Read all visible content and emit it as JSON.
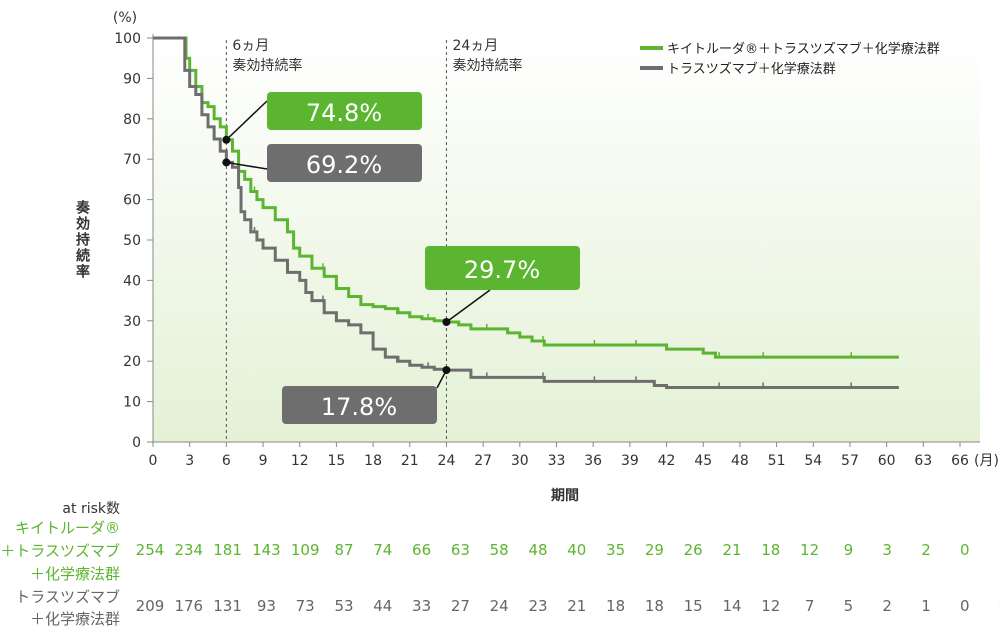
{
  "chart_data": {
    "type": "line",
    "subtype": "kaplan-meier",
    "ylabel": "奏効持続率",
    "yunit": "(%)",
    "xlabel": "期間",
    "xunit": "(月)",
    "xlim": [
      0,
      66
    ],
    "ylim": [
      0,
      100
    ],
    "xticks": [
      0,
      3,
      6,
      9,
      12,
      15,
      18,
      21,
      24,
      27,
      30,
      33,
      36,
      39,
      42,
      45,
      48,
      51,
      54,
      57,
      60,
      63,
      66
    ],
    "yticks": [
      0,
      10,
      20,
      30,
      40,
      50,
      60,
      70,
      80,
      90,
      100
    ],
    "colors": {
      "green": "#5cb531",
      "gray": "#6e6e6e"
    },
    "series": [
      {
        "name": "キイトルーダ®＋トラスツズマブ＋化学療法群",
        "color": "#5cb531",
        "points": [
          [
            0,
            100
          ],
          [
            2.5,
            100
          ],
          [
            2.7,
            95
          ],
          [
            3,
            92
          ],
          [
            3.5,
            88
          ],
          [
            4,
            84
          ],
          [
            4.5,
            83
          ],
          [
            5,
            80
          ],
          [
            5.5,
            78
          ],
          [
            6,
            74.8
          ],
          [
            6.5,
            72
          ],
          [
            7,
            67
          ],
          [
            7.5,
            65
          ],
          [
            8,
            62
          ],
          [
            8.5,
            60
          ],
          [
            9,
            58
          ],
          [
            10,
            55
          ],
          [
            11,
            52
          ],
          [
            11.5,
            48
          ],
          [
            12,
            46
          ],
          [
            13,
            43
          ],
          [
            14,
            41
          ],
          [
            15,
            38
          ],
          [
            16,
            36
          ],
          [
            17,
            34
          ],
          [
            18,
            33.5
          ],
          [
            19,
            33
          ],
          [
            20,
            32
          ],
          [
            21,
            31
          ],
          [
            22,
            30.5
          ],
          [
            23,
            30
          ],
          [
            24,
            29.7
          ],
          [
            25,
            29
          ],
          [
            26,
            28
          ],
          [
            28,
            28
          ],
          [
            29,
            27
          ],
          [
            30,
            26
          ],
          [
            31,
            25
          ],
          [
            32,
            24
          ],
          [
            41,
            24
          ],
          [
            42,
            23
          ],
          [
            45,
            22
          ],
          [
            46,
            21
          ],
          [
            61,
            21
          ]
        ]
      },
      {
        "name": "トラスツズマブ＋化学療法群",
        "color": "#6e6e6e",
        "points": [
          [
            0,
            100
          ],
          [
            2.5,
            100
          ],
          [
            2.6,
            92
          ],
          [
            3,
            88
          ],
          [
            3.5,
            86
          ],
          [
            4,
            81
          ],
          [
            4.5,
            78
          ],
          [
            5,
            75
          ],
          [
            5.5,
            72
          ],
          [
            6,
            69.2
          ],
          [
            6.5,
            68
          ],
          [
            7,
            63
          ],
          [
            7.2,
            57
          ],
          [
            7.5,
            55
          ],
          [
            8,
            52
          ],
          [
            8.5,
            50
          ],
          [
            9,
            48
          ],
          [
            10,
            45
          ],
          [
            11,
            42
          ],
          [
            12,
            40
          ],
          [
            12.5,
            37
          ],
          [
            13,
            35
          ],
          [
            14,
            32
          ],
          [
            15,
            30
          ],
          [
            16,
            29
          ],
          [
            17,
            27
          ],
          [
            18,
            23
          ],
          [
            19,
            21
          ],
          [
            20,
            20
          ],
          [
            21,
            19
          ],
          [
            22,
            18.5
          ],
          [
            23,
            18
          ],
          [
            24,
            17.8
          ],
          [
            26,
            16
          ],
          [
            28,
            16
          ],
          [
            32,
            15
          ],
          [
            40,
            15
          ],
          [
            41,
            14
          ],
          [
            42,
            13.5
          ],
          [
            61,
            13.5
          ]
        ]
      }
    ],
    "reference_lines": [
      {
        "x": 6,
        "label1": "6ヵ月",
        "label2": "奏効持続率"
      },
      {
        "x": 24,
        "label1": "24ヵ月",
        "label2": "奏効持続率"
      }
    ],
    "annotations": [
      {
        "label": "74.8%",
        "x": 6,
        "y": 74.8,
        "series": 0
      },
      {
        "label": "69.2%",
        "x": 6,
        "y": 69.2,
        "series": 1
      },
      {
        "label": "29.7%",
        "x": 24,
        "y": 29.7,
        "series": 0
      },
      {
        "label": "17.8%",
        "x": 24,
        "y": 17.8,
        "series": 1
      }
    ],
    "legend": {
      "placement": "top-right",
      "entries": [
        "キイトルーダ®＋トラスツズマブ＋化学療法群",
        "トラスツズマブ＋化学療法群"
      ]
    },
    "at_risk": {
      "title": "at risk数",
      "groups": [
        {
          "label_lines": [
            "キイトルーダ®",
            "＋トラスツズマブ",
            "＋化学療法群"
          ],
          "values": [
            254,
            234,
            181,
            143,
            109,
            87,
            74,
            66,
            63,
            58,
            48,
            40,
            35,
            29,
            26,
            21,
            18,
            12,
            9,
            3,
            2,
            0,
            0
          ]
        },
        {
          "label_lines": [
            "トラスツズマブ",
            "＋化学療法群"
          ],
          "values": [
            209,
            176,
            131,
            93,
            73,
            53,
            44,
            33,
            27,
            24,
            23,
            21,
            18,
            18,
            15,
            14,
            12,
            7,
            5,
            2,
            1,
            0,
            0
          ]
        }
      ]
    }
  }
}
